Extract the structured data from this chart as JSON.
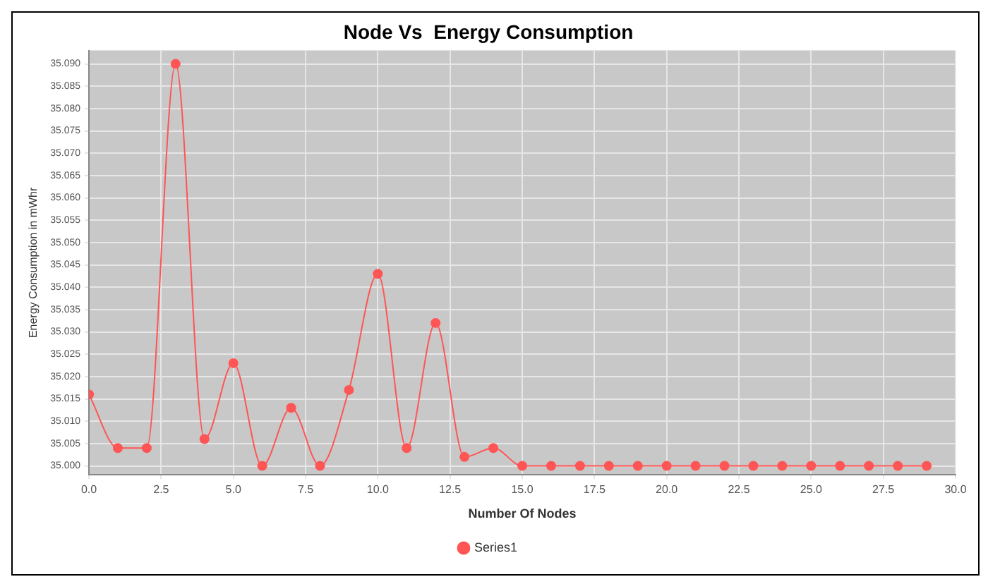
{
  "chart_data": {
    "type": "line",
    "title": "Node Vs  Energy Consumption",
    "xlabel": "Number Of Nodes",
    "ylabel": "Energy Consumption in mWhr",
    "x": [
      0,
      1,
      2,
      3,
      4,
      5,
      6,
      7,
      8,
      9,
      10,
      11,
      12,
      13,
      14,
      15,
      16,
      17,
      18,
      19,
      20,
      21,
      22,
      23,
      24,
      25,
      26,
      27,
      28,
      29
    ],
    "series": [
      {
        "name": "Series1",
        "color": "#ff5555",
        "values": [
          35.016,
          35.004,
          35.004,
          35.09,
          35.006,
          35.023,
          35.0,
          35.013,
          35.0,
          35.017,
          35.043,
          35.004,
          35.032,
          35.002,
          35.004,
          35.0,
          35.0,
          35.0,
          35.0,
          35.0,
          35.0,
          35.0,
          35.0,
          35.0,
          35.0,
          35.0,
          35.0,
          35.0,
          35.0,
          35.0
        ]
      }
    ],
    "xlim": [
      0,
      30
    ],
    "xticks": [
      {
        "value": 0,
        "label": "0.0"
      },
      {
        "value": 2.5,
        "label": "2.5"
      },
      {
        "value": 5,
        "label": "5.0"
      },
      {
        "value": 7.5,
        "label": "7.5"
      },
      {
        "value": 10,
        "label": "10.0"
      },
      {
        "value": 12.5,
        "label": "12.5"
      },
      {
        "value": 15,
        "label": "15.0"
      },
      {
        "value": 17.5,
        "label": "17.5"
      },
      {
        "value": 20,
        "label": "20.0"
      },
      {
        "value": 22.5,
        "label": "22.5"
      },
      {
        "value": 25,
        "label": "25.0"
      },
      {
        "value": 27.5,
        "label": "27.5"
      },
      {
        "value": 30,
        "label": "30.0"
      }
    ],
    "ylim": [
      34.998,
      35.093
    ],
    "yticks": [
      {
        "value": 35,
        "label": "35.000"
      },
      {
        "value": 35.005,
        "label": "35.005"
      },
      {
        "value": 35.01,
        "label": "35.010"
      },
      {
        "value": 35.015,
        "label": "35.015"
      },
      {
        "value": 35.02,
        "label": "35.020"
      },
      {
        "value": 35.025,
        "label": "35.025"
      },
      {
        "value": 35.03,
        "label": "35.030"
      },
      {
        "value": 35.035,
        "label": "35.035"
      },
      {
        "value": 35.04,
        "label": "35.040"
      },
      {
        "value": 35.045,
        "label": "35.045"
      },
      {
        "value": 35.05,
        "label": "35.050"
      },
      {
        "value": 35.055,
        "label": "35.055"
      },
      {
        "value": 35.06,
        "label": "35.060"
      },
      {
        "value": 35.065,
        "label": "35.065"
      },
      {
        "value": 35.07,
        "label": "35.070"
      },
      {
        "value": 35.075,
        "label": "35.075"
      },
      {
        "value": 35.08,
        "label": "35.080"
      },
      {
        "value": 35.085,
        "label": "35.085"
      },
      {
        "value": 35.09,
        "label": "35.090"
      }
    ],
    "grid": true,
    "legend": "bottom",
    "marker": "circle",
    "line_style": "solid"
  }
}
